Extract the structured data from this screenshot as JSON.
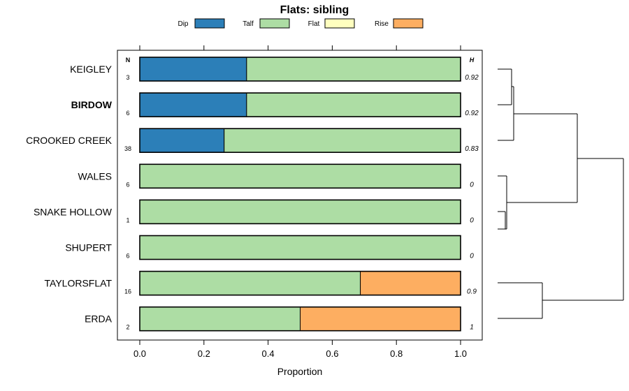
{
  "chart_data": {
    "type": "bar",
    "stacked": true,
    "orientation": "horizontal",
    "title": "Flats: sibling",
    "xlabel": "Proportion",
    "xlim": [
      0,
      1
    ],
    "xticks": [
      "0.0",
      "0.2",
      "0.4",
      "0.6",
      "0.8",
      "1.0"
    ],
    "n_header": "N",
    "h_header": "H",
    "highlighted_category": "BIRDOW",
    "legend": [
      {
        "name": "Dip",
        "color": "#2C7FB8"
      },
      {
        "name": "Talf",
        "color": "#ADDDA4"
      },
      {
        "name": "Flat",
        "color": "#FFFFBF"
      },
      {
        "name": "Rise",
        "color": "#FDAE61"
      }
    ],
    "categories": [
      "KEIGLEY",
      "BIRDOW",
      "CROOKED CREEK",
      "WALES",
      "SNAKE HOLLOW",
      "SHUPERT",
      "TAYLORSFLAT",
      "ERDA"
    ],
    "n": [
      "3",
      "6",
      "38",
      "6",
      "1",
      "6",
      "16",
      "2"
    ],
    "h": [
      "0.92",
      "0.92",
      "0.83",
      "0",
      "0",
      "0",
      "0.9",
      "1"
    ],
    "series": [
      {
        "name": "Dip",
        "values": [
          0.333,
          0.333,
          0.263,
          0,
          0,
          0,
          0,
          0
        ]
      },
      {
        "name": "Talf",
        "values": [
          0.667,
          0.667,
          0.737,
          1,
          1,
          1,
          0.6875,
          0.5
        ]
      },
      {
        "name": "Flat",
        "values": [
          0,
          0,
          0,
          0,
          0,
          0,
          0,
          0
        ]
      },
      {
        "name": "Rise",
        "values": [
          0,
          0,
          0,
          0,
          0,
          0,
          0.3125,
          0.5
        ]
      }
    ],
    "dendrogram_shown": true
  }
}
